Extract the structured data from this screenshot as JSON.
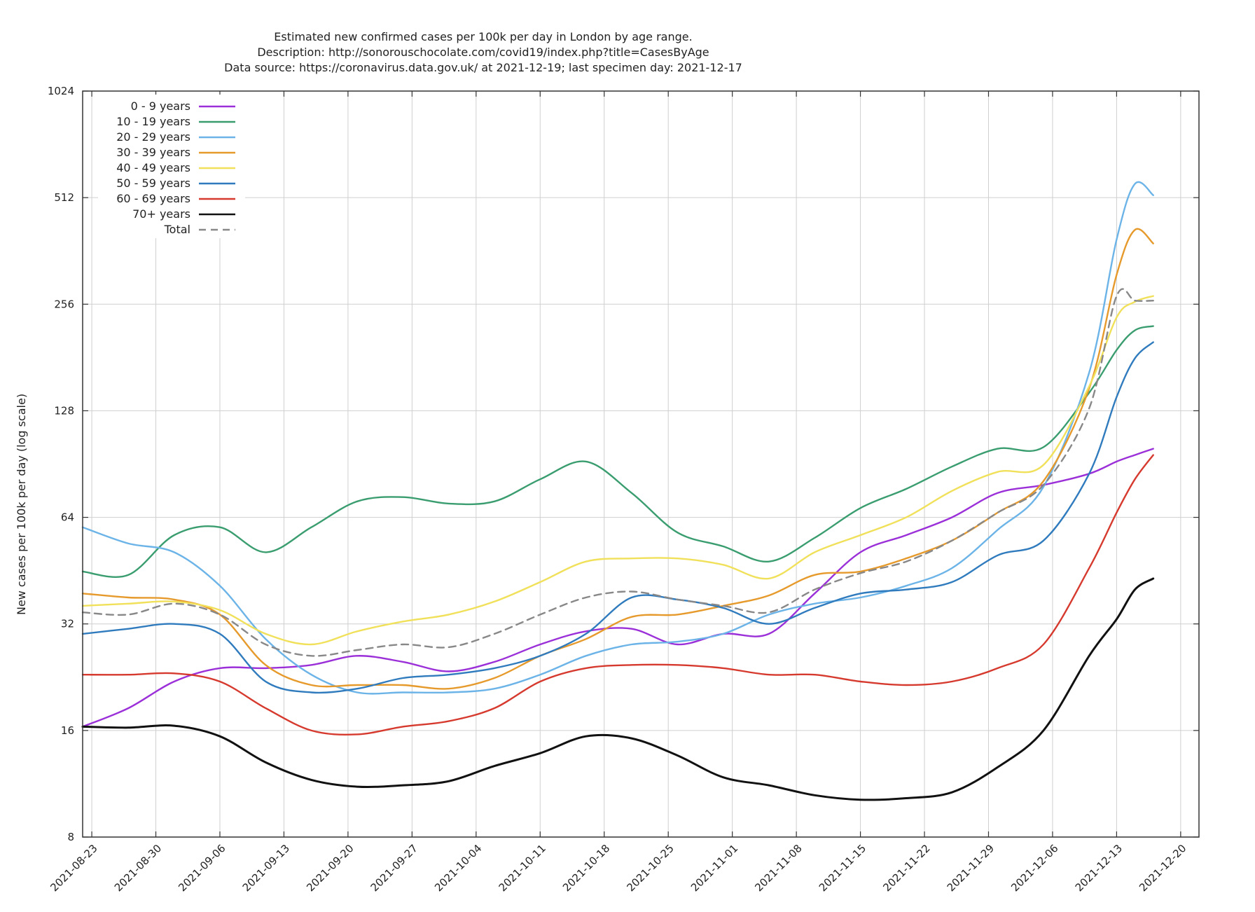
{
  "chart_data": {
    "type": "line",
    "title_lines": [
      "Estimated new confirmed cases per 100k per day in London by age range.",
      "Description: http://sonorouschocolate.com/covid19/index.php?title=CasesByAge",
      "Data source: https://coronavirus.data.gov.uk/ at 2021-12-19; last specimen day: 2021-12-17"
    ],
    "ylabel": "New cases per 100k per day (log scale)",
    "yscale": "log2",
    "ylim": [
      8,
      1024
    ],
    "yticks": [
      8,
      16,
      32,
      64,
      128,
      256,
      512,
      1024
    ],
    "xlim": [
      "2021-08-22",
      "2021-12-22"
    ],
    "xticks": [
      "2021-08-23",
      "2021-08-30",
      "2021-09-06",
      "2021-09-13",
      "2021-09-20",
      "2021-09-27",
      "2021-10-04",
      "2021-10-11",
      "2021-10-18",
      "2021-10-25",
      "2021-11-01",
      "2021-11-08",
      "2021-11-15",
      "2021-11-22",
      "2021-11-29",
      "2021-12-06",
      "2021-12-13",
      "2021-12-20"
    ],
    "grid": true,
    "legend_position": "top-left",
    "x": [
      "2021-08-22",
      "2021-08-27",
      "2021-09-01",
      "2021-09-06",
      "2021-09-11",
      "2021-09-16",
      "2021-09-21",
      "2021-09-26",
      "2021-10-01",
      "2021-10-06",
      "2021-10-11",
      "2021-10-16",
      "2021-10-21",
      "2021-10-26",
      "2021-10-31",
      "2021-11-05",
      "2021-11-10",
      "2021-11-15",
      "2021-11-20",
      "2021-11-25",
      "2021-11-30",
      "2021-12-05",
      "2021-12-10",
      "2021-12-13",
      "2021-12-15",
      "2021-12-17"
    ],
    "series": [
      {
        "name": "0 - 9 years",
        "color": "#9b30d9",
        "dash": "",
        "values": [
          16.4,
          18.5,
          22,
          24,
          24,
          24.5,
          26,
          25,
          23.5,
          25,
          28,
          30.5,
          31,
          28,
          30,
          30,
          39,
          51,
          57,
          64,
          75,
          79,
          85,
          92,
          96,
          100
        ]
      },
      {
        "name": "10 - 19 years",
        "color": "#3a9d6f",
        "dash": "",
        "values": [
          45,
          44,
          57,
          60,
          51,
          60,
          71,
          73,
          70,
          71,
          82,
          92,
          75,
          58,
          53,
          48,
          56,
          68,
          77,
          89,
          100,
          101,
          144,
          190,
          216,
          222
        ]
      },
      {
        "name": "20 - 29 years",
        "color": "#6cb4e8",
        "dash": "",
        "values": [
          60,
          54,
          51,
          41,
          29,
          23,
          20.5,
          20.5,
          20.5,
          21,
          23,
          26,
          28,
          28.5,
          30,
          34,
          36.5,
          38,
          41,
          46,
          59,
          78,
          164,
          390,
          560,
          520
        ]
      },
      {
        "name": "30 - 39 years",
        "color": "#e69a2c",
        "dash": "",
        "values": [
          39,
          38,
          37.5,
          34,
          24.5,
          21.5,
          21.5,
          21.5,
          21,
          22.5,
          26,
          29,
          33.5,
          34,
          36,
          38.5,
          44,
          45,
          49,
          55,
          66,
          81,
          148,
          310,
          415,
          380
        ]
      },
      {
        "name": "40 - 49 years",
        "color": "#f0e05a",
        "dash": "",
        "values": [
          36,
          36.5,
          37,
          35,
          30,
          28,
          30.5,
          32.5,
          34,
          37,
          42,
          48,
          49,
          49,
          47,
          43,
          51,
          57,
          64,
          76,
          86,
          90,
          150,
          235,
          260,
          270
        ]
      },
      {
        "name": "50 - 59 years",
        "color": "#2f7bbd",
        "dash": "",
        "values": [
          30,
          31,
          32,
          30,
          22,
          20.5,
          21,
          22.5,
          23,
          24,
          26,
          30,
          38,
          37.5,
          35.5,
          32,
          35.5,
          39,
          40,
          42,
          50,
          55,
          85,
          140,
          180,
          200
        ]
      },
      {
        "name": "60 - 69 years",
        "color": "#d63a2e",
        "dash": "",
        "values": [
          23,
          23,
          23.2,
          22,
          18.5,
          16,
          15.6,
          16.4,
          17,
          18.5,
          22,
          24,
          24.5,
          24.5,
          24,
          23,
          23,
          22,
          21.5,
          22,
          24,
          28,
          46,
          66,
          82,
          96
        ]
      },
      {
        "name": "70+ years",
        "color": "#111111",
        "dash": "",
        "values": [
          16.4,
          16.3,
          16.5,
          15.4,
          13,
          11.6,
          11.1,
          11.2,
          11.5,
          12.7,
          13.8,
          15.4,
          15.2,
          13.6,
          11.8,
          11.2,
          10.5,
          10.2,
          10.3,
          10.7,
          12.6,
          16,
          26,
          33,
          40,
          43
        ]
      },
      {
        "name": "Total",
        "color": "#888888",
        "dash": "10,7",
        "values": [
          34.5,
          34,
          36.5,
          34,
          28,
          26,
          27,
          28,
          27.5,
          30,
          34,
          38,
          39.5,
          37.5,
          36,
          34.5,
          40,
          44.5,
          48,
          55,
          66,
          79,
          130,
          270,
          262,
          262
        ]
      }
    ]
  }
}
